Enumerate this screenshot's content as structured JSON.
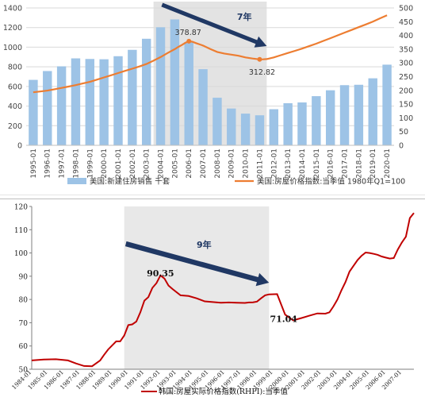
{
  "chart_data": [
    {
      "type": "bar+line",
      "categories": [
        "1995-01",
        "1996-01",
        "1997-01",
        "1998-01",
        "1999-01",
        "2000-01",
        "2001-01",
        "2002-01",
        "2003-01",
        "2004-01",
        "2005-01",
        "2006-01",
        "2007-01",
        "2008-01",
        "2009-01",
        "2010-01",
        "2011-01",
        "2012-01",
        "2013-01",
        "2014-01",
        "2015-01",
        "2016-01",
        "2017-01",
        "2018-01",
        "2019-01",
        "2020-01"
      ],
      "series": [
        {
          "name": "美国:新建住房销售 千套",
          "kind": "bar",
          "axis": "left",
          "color": "#9dc3e6",
          "values": [
            667,
            757,
            805,
            886,
            880,
            877,
            908,
            973,
            1086,
            1203,
            1283,
            1051,
            776,
            485,
            375,
            323,
            306,
            368,
            429,
            437,
            501,
            561,
            613,
            617,
            683,
            822
          ]
        },
        {
          "name": "美国:房屋价格指数:当季值 1980年Q1=100",
          "kind": "line",
          "axis": "right",
          "color": "#ed7d31",
          "x": [
            0,
            0.5,
            1,
            1.5,
            2,
            2.5,
            3,
            3.5,
            4,
            4.5,
            5,
            5.5,
            6,
            6.5,
            7,
            7.5,
            8,
            8.5,
            9,
            9.5,
            10,
            10.25,
            10.5,
            10.75,
            11,
            11.25,
            11.5,
            12,
            12.5,
            13,
            13.5,
            14,
            14.5,
            15,
            15.5,
            16,
            16.25,
            16.5,
            17,
            17.5,
            18,
            18.5,
            19,
            19.5,
            20,
            20.5,
            21,
            21.5,
            22,
            22.5,
            23,
            23.5,
            24,
            24.5,
            25
          ],
          "values": [
            193,
            196,
            199,
            204,
            209,
            214,
            219,
            225,
            231,
            239,
            247,
            255,
            263,
            271,
            279,
            287,
            296,
            308,
            321,
            336,
            350,
            358,
            365,
            373,
            378.87,
            377,
            372,
            363,
            351,
            340,
            334,
            330,
            326,
            320,
            316,
            312.82,
            313,
            314,
            320,
            328,
            336,
            344,
            352,
            361,
            370,
            380,
            390,
            400,
            410,
            420,
            430,
            440,
            450,
            462,
            473
          ]
        }
      ],
      "callouts": [
        {
          "label": "378.87",
          "x": 11,
          "value": 378.87
        },
        {
          "label": "312.82",
          "x": 16,
          "value": 312.82
        }
      ],
      "y_left": {
        "ticks": [
          "0",
          "200",
          "400",
          "600",
          "800",
          "1000",
          "1200",
          "1400"
        ],
        "ylim": [
          0,
          1400
        ]
      },
      "y_right": {
        "ticks": [
          "0",
          "50",
          "100",
          "150",
          "200",
          "250",
          "300",
          "350",
          "400",
          "450",
          "500"
        ],
        "ylim": [
          0,
          500
        ]
      },
      "shaded_range": [
        "2004-01",
        "2011-01"
      ],
      "arrow": {
        "label": "7年",
        "from": "2004-01",
        "to": "2011-01",
        "color": "#203864"
      },
      "legend_position": "bottom",
      "grid": true
    },
    {
      "type": "line",
      "series": [
        {
          "name": "韩国:房屋实际价格指数(RHPI):当季值",
          "color": "#c00000",
          "x": [
            1984.25,
            1985,
            1985.75,
            1986.5,
            1987,
            1987.5,
            1988,
            1988.5,
            1988.75,
            1989,
            1989.5,
            1989.75,
            1990,
            1990.25,
            1990.5,
            1990.75,
            1991,
            1991.25,
            1991.5,
            1991.75,
            1992,
            1992.25,
            1992.5,
            1992.75,
            1993,
            1993.5,
            1994,
            1994.5,
            1995,
            1995.5,
            1996,
            1996.5,
            1997,
            1997.5,
            1997.75,
            1998,
            1998.25,
            1998.5,
            1998.75,
            1999,
            1999.5,
            2000,
            2000.5,
            2001,
            2001.5,
            2002,
            2002.5,
            2002.75,
            2003,
            2003.25,
            2003.5,
            2003.75,
            2004,
            2004.25,
            2004.5,
            2004.75,
            2005,
            2005.25,
            2005.5,
            2005.75,
            2006,
            2006.25,
            2006.5,
            2006.75,
            2007,
            2007.25,
            2007.5,
            2007.75,
            2008
          ],
          "values": [
            53.8,
            54.2,
            54.3,
            53.8,
            52.5,
            51.4,
            51.3,
            53.8,
            56.2,
            58.5,
            62.0,
            62.0,
            64.5,
            69.0,
            69.3,
            70.5,
            74.5,
            79.5,
            81.0,
            85.0,
            87.0,
            90.35,
            89.0,
            86.0,
            84.5,
            81.8,
            81.5,
            80.5,
            79.2,
            78.9,
            78.6,
            78.7,
            78.6,
            78.5,
            78.7,
            78.8,
            79.1,
            80.5,
            81.8,
            82.2,
            82.3,
            73.5,
            71.04,
            72.0,
            73.0,
            74.0,
            73.9,
            74.5,
            77.0,
            80.0,
            84.0,
            87.5,
            92.0,
            94.5,
            97.0,
            98.8,
            100.2,
            100.0,
            99.6,
            99.2,
            98.5,
            98.0,
            97.6,
            97.8,
            101.5,
            104.5,
            107.0,
            115.0,
            117.2
          ]
        }
      ],
      "x_ticks": [
        "1984-01",
        "1985-01",
        "1986-01",
        "1987-01",
        "1988-01",
        "1989-01",
        "1990-01",
        "1991-01",
        "1992-01",
        "1993-01",
        "1994-01",
        "1995-01",
        "1996-01",
        "1997-01",
        "1998-01",
        "1999-01",
        "2000-01",
        "2001-01",
        "2002-01",
        "2003-01",
        "2004-01",
        "2005-01",
        "2006-01",
        "2007-01"
      ],
      "y_ticks": [
        "50",
        "60",
        "70",
        "80",
        "90",
        "100",
        "110",
        "120"
      ],
      "ylim": [
        50,
        120
      ],
      "callouts": [
        {
          "label": "90.35",
          "x": 1991.25,
          "value": 90.35
        },
        {
          "label": "71.04",
          "x": 1999.5,
          "value": 71.04
        }
      ],
      "shaded_range": [
        "1990-01",
        "1999-01"
      ],
      "arrow": {
        "label": "9年",
        "from": "1990-01",
        "to": "1999-01",
        "color": "#203864"
      },
      "legend_position": "bottom",
      "grid": false
    }
  ]
}
